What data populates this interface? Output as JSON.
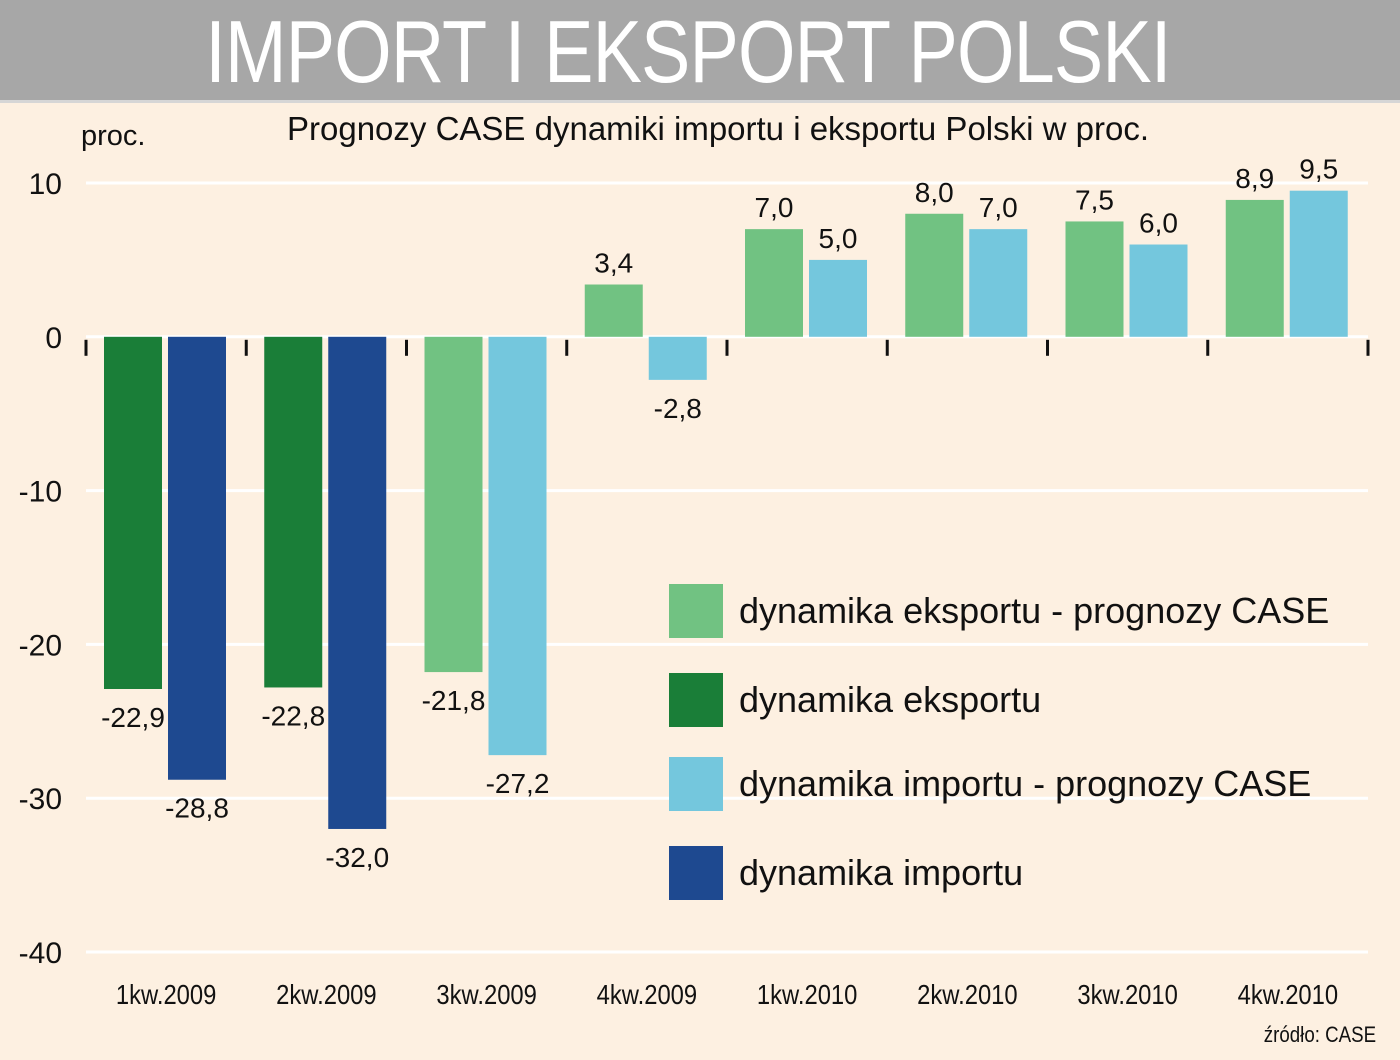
{
  "banner": {
    "title": "IMPORT I EKSPORT POLSKI"
  },
  "source": "źródło: CASE",
  "colors": {
    "background": "#fdf0e1",
    "banner": "#a7a7a7",
    "export_forecast": "#71c282",
    "export": "#1a7e38",
    "import_forecast": "#74c7dd",
    "import": "#1e4990",
    "gridline": "#ffffff"
  },
  "chart_data": {
    "type": "bar",
    "title": "Prognozy CASE dynamiki importu i eksportu Polski w proc.",
    "ylabel": "proc.",
    "ylim": [
      -40,
      10
    ],
    "yticks": [
      "10",
      "0",
      "-10",
      "-20",
      "-30",
      "-40"
    ],
    "ytick_values": [
      10,
      0,
      -10,
      -20,
      -30,
      -40
    ],
    "grid": true,
    "legend_position": "bottom-right",
    "categories": [
      "1kw.2009",
      "2kw.2009",
      "3kw.2009",
      "4kw.2009",
      "1kw.2010",
      "2kw.2010",
      "3kw.2010",
      "4kw.2010"
    ],
    "series": [
      {
        "name": "dynamika eksportu - prognozy CASE",
        "color": "#71c282",
        "values": [
          null,
          null,
          -21.8,
          3.4,
          7.0,
          8.0,
          7.5,
          8.9
        ]
      },
      {
        "name": "dynamika eksportu",
        "color": "#1a7e38",
        "values": [
          -22.9,
          -22.8,
          null,
          null,
          null,
          null,
          null,
          null
        ]
      },
      {
        "name": "dynamika importu - prognozy CASE",
        "color": "#74c7dd",
        "values": [
          null,
          null,
          -27.2,
          -2.8,
          5.0,
          7.0,
          6.0,
          9.5
        ]
      },
      {
        "name": "dynamika importu",
        "color": "#1e4990",
        "values": [
          -28.8,
          -32.0,
          null,
          null,
          null,
          null,
          null,
          null
        ]
      }
    ],
    "bars": [
      {
        "category": "1kw.2009",
        "export": -22.9,
        "export_label": "-22,9",
        "import": -28.8,
        "import_label": "-28,8",
        "export_series": "dynamika eksportu",
        "import_series": "dynamika importu"
      },
      {
        "category": "2kw.2009",
        "export": -22.8,
        "export_label": "-22,8",
        "import": -32.0,
        "import_label": "-32,0",
        "export_series": "dynamika eksportu",
        "import_series": "dynamika importu"
      },
      {
        "category": "3kw.2009",
        "export": -21.8,
        "export_label": "-21,8",
        "import": -27.2,
        "import_label": "-27,2",
        "export_series": "dynamika eksportu - prognozy CASE",
        "import_series": "dynamika importu - prognozy CASE"
      },
      {
        "category": "4kw.2009",
        "export": 3.4,
        "export_label": "3,4",
        "import": -2.8,
        "import_label": "-2,8",
        "export_series": "dynamika eksportu - prognozy CASE",
        "import_series": "dynamika importu - prognozy CASE"
      },
      {
        "category": "1kw.2010",
        "export": 7.0,
        "export_label": "7,0",
        "import": 5.0,
        "import_label": "5,0",
        "export_series": "dynamika eksportu - prognozy CASE",
        "import_series": "dynamika importu - prognozy CASE"
      },
      {
        "category": "2kw.2010",
        "export": 8.0,
        "export_label": "8,0",
        "import": 7.0,
        "import_label": "7,0",
        "export_series": "dynamika eksportu - prognozy CASE",
        "import_series": "dynamika importu - prognozy CASE"
      },
      {
        "category": "3kw.2010",
        "export": 7.5,
        "export_label": "7,5",
        "import": 6.0,
        "import_label": "6,0",
        "export_series": "dynamika eksportu - prognozy CASE",
        "import_series": "dynamika importu - prognozy CASE"
      },
      {
        "category": "4kw.2010",
        "export": 8.9,
        "export_label": "8,9",
        "import": 9.5,
        "import_label": "9,5",
        "export_series": "dynamika eksportu - prognozy CASE",
        "import_series": "dynamika importu - prognozy CASE"
      }
    ]
  },
  "legend": [
    {
      "label": "dynamika eksportu - prognozy CASE",
      "color": "#71c282"
    },
    {
      "label": "dynamika eksportu",
      "color": "#1a7e38"
    },
    {
      "label": "dynamika importu - prognozy CASE",
      "color": "#74c7dd"
    },
    {
      "label": "dynamika importu",
      "color": "#1e4990"
    }
  ]
}
